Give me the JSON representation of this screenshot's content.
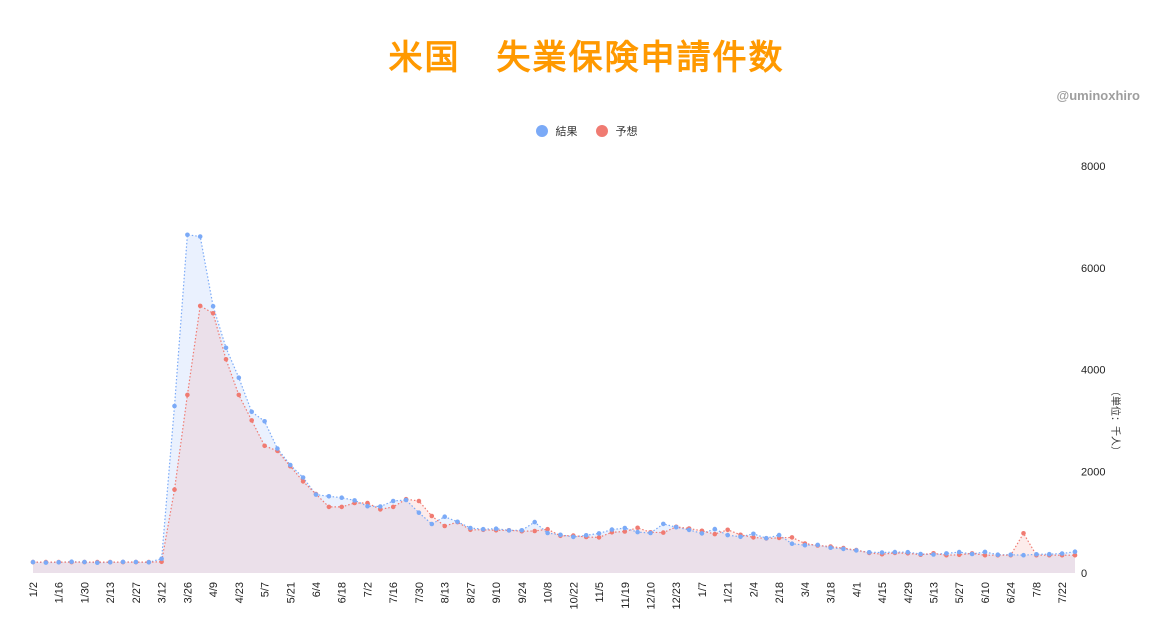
{
  "title": "米国　失業保険申請件数",
  "credit": "@uminoxhiro",
  "legend": [
    {
      "label": "結果",
      "color": "#7baaf7"
    },
    {
      "label": "予想",
      "color": "#f07b72"
    }
  ],
  "y_axis": {
    "ticks": [
      "8000",
      "6000",
      "4000",
      "2000",
      "0"
    ],
    "unit_label": "（単位：千人）"
  },
  "chart_data": {
    "type": "area",
    "title": "米国　失業保険申請件数",
    "xlabel": "",
    "ylabel": "（単位：千人）",
    "ylim": [
      0,
      8000
    ],
    "grid": false,
    "legend_position": "top",
    "x_tick_labels": [
      "1/2",
      "1/16",
      "1/30",
      "2/13",
      "2/27",
      "3/12",
      "3/26",
      "4/9",
      "4/23",
      "5/7",
      "5/21",
      "6/4",
      "6/18",
      "7/2",
      "7/16",
      "7/30",
      "8/13",
      "8/27",
      "9/10",
      "9/24",
      "10/8",
      "10/22",
      "11/5",
      "11/19",
      "12/10",
      "12/23",
      "1/7",
      "1/21",
      "2/4",
      "2/18",
      "3/4",
      "3/18",
      "4/1",
      "4/15",
      "4/29",
      "5/13",
      "5/27",
      "6/10",
      "6/24",
      "7/8",
      "7/22"
    ],
    "series": [
      {
        "name": "結果",
        "color": "#7baaf7",
        "values": [
          214,
          204,
          211,
          223,
          216,
          202,
          210,
          219,
          216,
          211,
          281,
          3283,
          6648,
          6615,
          5245,
          4427,
          3839,
          3169,
          2981,
          2446,
          2123,
          1877,
          1542,
          1508,
          1480,
          1427,
          1314,
          1307,
          1416,
          1434,
          1186,
          963,
          1106,
          1006,
          884,
          860,
          870,
          837,
          840,
          1000,
          787,
          751,
          709,
          742,
          778,
          853,
          885,
          803,
          787,
          965,
          900,
          847,
          779,
          863,
          745,
          712,
          770,
          684,
          744,
          576,
          547,
          553,
          498,
          473,
          444,
          406,
          402,
          411,
          409,
          373,
          364,
          385,
          411,
          373,
          415,
          360,
          360,
          350,
          368,
          370,
          384,
          419
        ],
        "_note": "weekly points 2020-01-02 .. 2021-07-22, values estimated in thousands"
      },
      {
        "name": "予想",
        "color": "#f07b72",
        "values": [
          215,
          215,
          215,
          215,
          215,
          215,
          215,
          215,
          215,
          215,
          220,
          1640,
          3500,
          5250,
          5105,
          4200,
          3500,
          3000,
          2500,
          2400,
          2100,
          1800,
          1550,
          1300,
          1300,
          1375,
          1375,
          1250,
          1300,
          1450,
          1415,
          1120,
          923,
          1000,
          850,
          850,
          840,
          840,
          822,
          825,
          860,
          731,
          735,
          707,
          700,
          800,
          815,
          888,
          800,
          795,
          909,
          875,
          830,
          765,
          850,
          750,
          700,
          680,
          690,
          700,
          580,
          540,
          520,
          490,
          450,
          395,
          370,
          395,
          388,
          360,
          387,
          350,
          358,
          385,
          349,
          350,
          350,
          780,
          350,
          350,
          350,
          350
        ],
        "_note": "estimated in thousands"
      }
    ]
  }
}
